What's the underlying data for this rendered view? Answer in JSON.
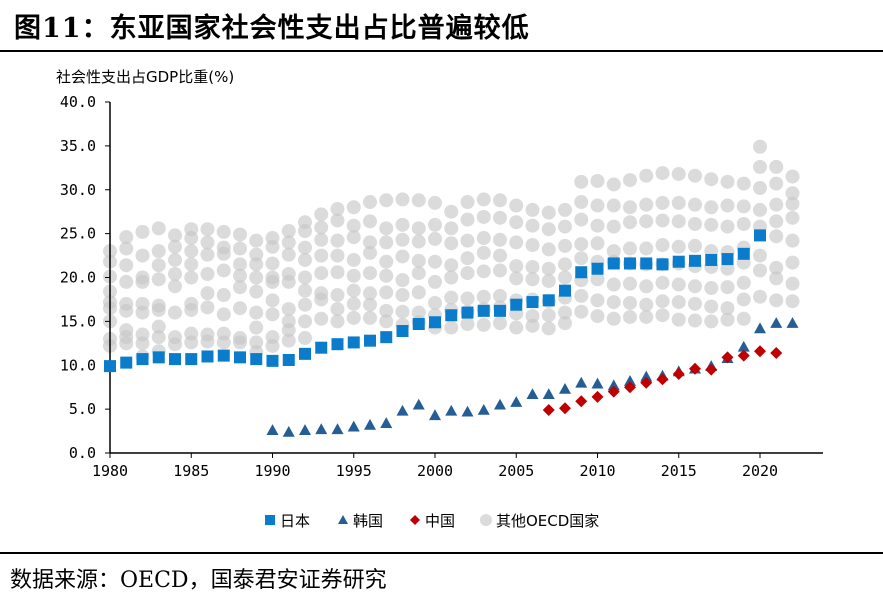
{
  "title": "图11：东亚国家社会性支出占比普遍较低",
  "source": "数据来源：OECD，国泰君安证券研究",
  "chart_data": {
    "type": "scatter",
    "ylabel": "社会性支出占GDP比重(%)",
    "xlim": [
      1980,
      2024
    ],
    "ylim": [
      0,
      40
    ],
    "x_ticks": [
      "1980",
      "1985",
      "1990",
      "1995",
      "2000",
      "2005",
      "2010",
      "2015",
      "2020"
    ],
    "y_ticks": [
      "0.0",
      "5.0",
      "10.0",
      "15.0",
      "20.0",
      "25.0",
      "30.0",
      "35.0",
      "40.0"
    ],
    "grid": false,
    "legend_position": "bottom",
    "series": [
      {
        "name": "日本",
        "marker": "square",
        "color": "#0A7CCB",
        "x": [
          1980,
          1981,
          1982,
          1983,
          1984,
          1985,
          1986,
          1987,
          1988,
          1989,
          1990,
          1991,
          1992,
          1993,
          1994,
          1995,
          1996,
          1997,
          1998,
          1999,
          2000,
          2001,
          2002,
          2003,
          2004,
          2005,
          2006,
          2007,
          2008,
          2009,
          2010,
          2011,
          2012,
          2013,
          2014,
          2015,
          2016,
          2017,
          2018,
          2019,
          2020
        ],
        "y": [
          9.9,
          10.3,
          10.7,
          10.9,
          10.7,
          10.7,
          11.0,
          11.1,
          10.9,
          10.7,
          10.5,
          10.6,
          11.3,
          12.0,
          12.4,
          12.6,
          12.8,
          13.2,
          13.9,
          14.7,
          14.9,
          15.7,
          16.0,
          16.2,
          16.2,
          16.9,
          17.2,
          17.4,
          18.5,
          20.6,
          21.0,
          21.6,
          21.6,
          21.6,
          21.5,
          21.8,
          21.9,
          22.0,
          22.1,
          22.7,
          24.8
        ]
      },
      {
        "name": "韩国",
        "marker": "triangle",
        "color": "#245E94",
        "x": [
          1990,
          1991,
          1992,
          1993,
          1994,
          1995,
          1996,
          1997,
          1998,
          1999,
          2000,
          2001,
          2002,
          2003,
          2004,
          2005,
          2006,
          2007,
          2008,
          2009,
          2010,
          2011,
          2012,
          2013,
          2014,
          2015,
          2016,
          2017,
          2018,
          2019,
          2020,
          2021,
          2022
        ],
        "y": [
          2.6,
          2.4,
          2.6,
          2.7,
          2.7,
          3.0,
          3.2,
          3.4,
          4.8,
          5.5,
          4.3,
          4.8,
          4.7,
          4.9,
          5.5,
          5.8,
          6.7,
          6.7,
          7.3,
          8.0,
          7.9,
          7.7,
          8.2,
          8.7,
          8.8,
          9.3,
          9.6,
          9.9,
          10.8,
          12.1,
          14.2,
          14.8,
          14.8
        ]
      },
      {
        "name": "中国",
        "marker": "diamond",
        "color": "#C00000",
        "x": [
          2007,
          2008,
          2009,
          2010,
          2011,
          2012,
          2013,
          2014,
          2015,
          2016,
          2017,
          2018,
          2019,
          2020,
          2021
        ],
        "y": [
          4.9,
          5.1,
          5.9,
          6.4,
          7.0,
          7.5,
          8.0,
          8.4,
          9.0,
          9.6,
          9.5,
          10.9,
          11.1,
          11.6,
          11.4
        ]
      },
      {
        "name": "其他OECD国家",
        "marker": "circle",
        "color": "#C8C8C8",
        "by_year": {
          "1980": [
            23.0,
            21.8,
            20.1,
            18.4,
            17.2,
            16.5,
            15.0,
            13.0,
            12.2
          ],
          "1981": [
            24.6,
            23.3,
            21.4,
            19.5,
            17.0,
            16.2,
            14.0,
            13.2,
            12.5
          ],
          "1982": [
            25.2,
            22.5,
            20.0,
            19.5,
            17.0,
            16.0,
            13.5,
            12.5,
            11.0
          ],
          "1983": [
            25.6,
            23.0,
            21.4,
            19.8,
            16.8,
            16.3,
            14.4,
            13.2,
            11.6
          ],
          "1984": [
            24.8,
            23.5,
            22.0,
            20.4,
            19.0,
            16.0,
            13.2,
            12.4
          ],
          "1985": [
            25.5,
            24.5,
            23.0,
            21.5,
            20.0,
            17.0,
            16.3,
            13.6,
            12.6
          ],
          "1986": [
            25.5,
            24.0,
            22.6,
            20.4,
            18.2,
            16.6,
            13.5,
            12.7
          ],
          "1987": [
            25.2,
            23.4,
            22.7,
            20.8,
            18.0,
            15.8,
            13.6,
            12.6
          ],
          "1988": [
            24.9,
            23.3,
            21.5,
            20.2,
            18.9,
            16.5,
            13.1,
            12.6
          ],
          "1989": [
            24.2,
            22.6,
            21.5,
            20.0,
            18.4,
            16.0,
            14.3,
            12.6,
            11.5
          ],
          "1990": [
            24.5,
            23.5,
            21.6,
            20.0,
            19.5,
            17.4,
            15.8,
            13.2,
            12.2
          ],
          "1991": [
            25.3,
            24.0,
            22.6,
            20.4,
            19.5,
            16.4,
            15.0,
            14.0,
            12.8
          ],
          "1992": [
            26.3,
            25.3,
            23.4,
            22.0,
            20.0,
            18.5,
            16.9,
            15.0,
            13.1
          ],
          "1993": [
            27.2,
            25.7,
            24.3,
            22.5,
            20.5,
            18.2,
            17.5,
            15.3
          ],
          "1994": [
            27.8,
            26.5,
            24.2,
            22.5,
            20.6,
            18.0,
            16.4,
            15.0
          ],
          "1995": [
            28.0,
            25.9,
            24.6,
            22.0,
            20.2,
            18.5,
            17.0,
            15.4
          ],
          "1996": [
            28.6,
            26.4,
            24.0,
            22.8,
            20.5,
            18.2,
            16.9,
            15.4
          ],
          "1997": [
            28.8,
            25.6,
            24.0,
            21.8,
            20.2,
            18.3,
            16.2,
            15.0
          ],
          "1998": [
            28.9,
            26.0,
            24.3,
            22.4,
            19.7,
            18.0,
            16.1,
            14.6
          ],
          "1999": [
            28.8,
            25.6,
            24.1,
            21.9,
            20.5,
            18.3,
            16.0,
            14.9
          ],
          "2000": [
            28.5,
            26.0,
            24.4,
            21.8,
            19.5,
            17.1,
            15.7,
            14.3
          ],
          "2001": [
            27.5,
            25.6,
            23.9,
            21.4,
            20.0,
            17.7,
            16.3,
            14.3
          ],
          "2002": [
            28.6,
            26.6,
            24.2,
            22.2,
            20.5,
            17.6,
            16.1,
            14.7
          ],
          "2003": [
            28.9,
            26.9,
            24.5,
            22.8,
            20.7,
            17.8,
            16.4,
            14.6
          ],
          "2004": [
            28.8,
            26.8,
            24.3,
            22.5,
            20.8,
            17.9,
            16.6,
            14.8
          ],
          "2005": [
            28.2,
            26.3,
            24.0,
            21.3,
            19.9,
            17.4,
            15.9,
            14.3
          ],
          "2006": [
            27.7,
            25.9,
            23.7,
            21.2,
            19.8,
            17.5,
            15.6,
            14.5
          ],
          "2007": [
            27.4,
            25.5,
            23.2,
            21.0,
            19.6,
            17.3,
            15.7,
            14.2
          ],
          "2008": [
            27.7,
            25.8,
            23.6,
            21.5,
            20.0,
            17.7,
            16.0,
            14.8
          ],
          "2009": [
            30.9,
            28.6,
            26.6,
            23.8,
            22.2,
            19.7,
            17.9,
            16.1
          ],
          "2010": [
            31.0,
            28.2,
            25.9,
            23.9,
            21.8,
            19.8,
            17.4,
            15.6
          ],
          "2011": [
            30.6,
            28.2,
            25.8,
            23.0,
            21.8,
            19.2,
            17.2,
            15.3
          ],
          "2012": [
            31.1,
            28.0,
            26.3,
            23.3,
            21.6,
            19.3,
            17.1,
            15.5
          ],
          "2013": [
            31.6,
            28.3,
            26.4,
            23.3,
            21.5,
            19.0,
            16.9,
            15.5
          ],
          "2014": [
            31.9,
            28.5,
            26.5,
            23.7,
            21.5,
            19.4,
            17.3,
            15.7
          ],
          "2015": [
            31.8,
            28.5,
            26.4,
            23.5,
            21.6,
            19.2,
            17.2,
            15.2
          ],
          "2016": [
            31.6,
            28.3,
            26.1,
            23.6,
            21.3,
            19.0,
            17.0,
            15.1
          ],
          "2017": [
            31.2,
            28.0,
            26.0,
            23.0,
            21.2,
            18.8,
            16.7,
            15.0
          ],
          "2018": [
            30.9,
            28.2,
            25.8,
            22.9,
            21.0,
            18.9,
            16.5,
            15.2
          ],
          "2019": [
            30.7,
            28.1,
            26.1,
            23.4,
            21.7,
            19.4,
            17.5,
            15.3
          ],
          "2020": [
            34.9,
            32.6,
            30.2,
            27.7,
            25.8,
            22.5,
            20.8,
            17.8
          ],
          "2021": [
            32.6,
            30.7,
            28.3,
            26.4,
            24.7,
            21.1,
            19.9,
            17.4
          ],
          "2022": [
            31.5,
            29.6,
            28.4,
            26.8,
            24.2,
            21.7,
            19.3,
            17.3
          ]
        }
      }
    ]
  }
}
